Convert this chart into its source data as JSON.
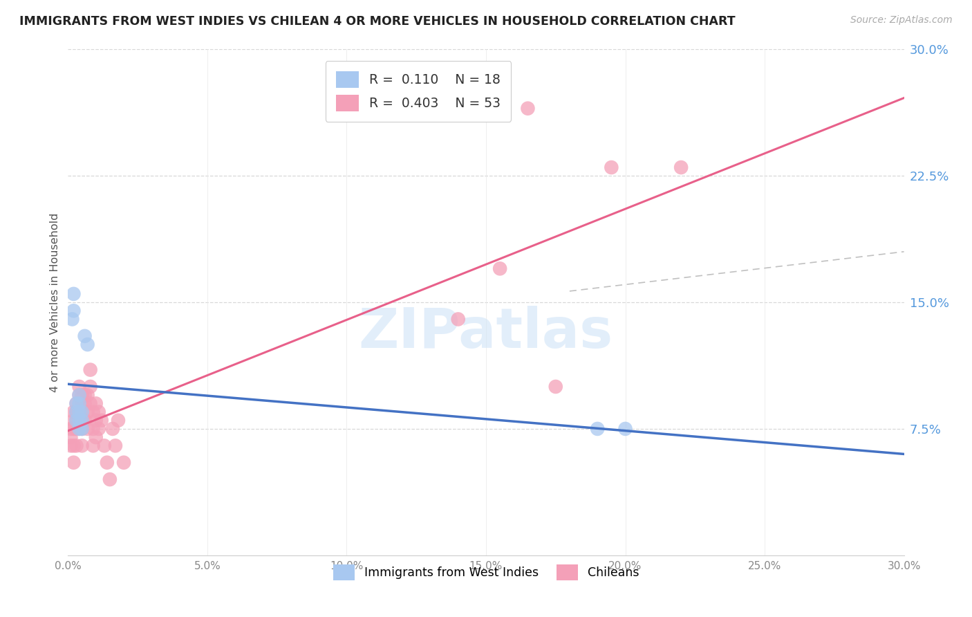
{
  "title": "IMMIGRANTS FROM WEST INDIES VS CHILEAN 4 OR MORE VEHICLES IN HOUSEHOLD CORRELATION CHART",
  "source": "Source: ZipAtlas.com",
  "ylabel": "4 or more Vehicles in Household",
  "xlim": [
    0.0,
    0.3
  ],
  "ylim": [
    0.0,
    0.3
  ],
  "xticks": [
    0.0,
    0.05,
    0.1,
    0.15,
    0.2,
    0.25,
    0.3
  ],
  "yticks_right": [
    0.075,
    0.15,
    0.225,
    0.3
  ],
  "ytick_right_labels": [
    "7.5%",
    "15.0%",
    "22.5%",
    "30.0%"
  ],
  "xtick_labels": [
    "0.0%",
    "5.0%",
    "10.0%",
    "15.0%",
    "20.0%",
    "25.0%",
    "30.0%"
  ],
  "r_west_indies": 0.11,
  "n_west_indies": 18,
  "r_chilean": 0.403,
  "n_chilean": 53,
  "legend_label_1": "Immigrants from West Indies",
  "legend_label_2": "Chileans",
  "color_west_indies": "#a8c8f0",
  "color_chilean": "#f4a0b8",
  "line_color_west_indies": "#4472c4",
  "line_color_chilean": "#e8608a",
  "watermark_text": "ZIPatlas",
  "west_indies_x": [
    0.0015,
    0.002,
    0.002,
    0.003,
    0.003,
    0.003,
    0.004,
    0.004,
    0.004,
    0.004,
    0.004,
    0.005,
    0.005,
    0.005,
    0.006,
    0.007,
    0.19,
    0.2
  ],
  "west_indies_y": [
    0.14,
    0.145,
    0.155,
    0.08,
    0.085,
    0.09,
    0.075,
    0.08,
    0.085,
    0.09,
    0.095,
    0.075,
    0.08,
    0.085,
    0.13,
    0.125,
    0.075,
    0.075
  ],
  "chilean_x": [
    0.001,
    0.001,
    0.001,
    0.002,
    0.002,
    0.002,
    0.002,
    0.002,
    0.003,
    0.003,
    0.003,
    0.003,
    0.003,
    0.004,
    0.004,
    0.004,
    0.004,
    0.005,
    0.005,
    0.005,
    0.005,
    0.005,
    0.006,
    0.006,
    0.006,
    0.007,
    0.007,
    0.007,
    0.008,
    0.008,
    0.008,
    0.009,
    0.009,
    0.009,
    0.01,
    0.01,
    0.01,
    0.011,
    0.011,
    0.012,
    0.013,
    0.014,
    0.015,
    0.016,
    0.017,
    0.018,
    0.02,
    0.14,
    0.155,
    0.165,
    0.175,
    0.195,
    0.22
  ],
  "chilean_y": [
    0.07,
    0.075,
    0.065,
    0.085,
    0.08,
    0.075,
    0.065,
    0.055,
    0.09,
    0.085,
    0.08,
    0.075,
    0.065,
    0.1,
    0.095,
    0.085,
    0.075,
    0.095,
    0.09,
    0.08,
    0.075,
    0.065,
    0.095,
    0.09,
    0.08,
    0.095,
    0.085,
    0.075,
    0.11,
    0.1,
    0.09,
    0.085,
    0.075,
    0.065,
    0.09,
    0.08,
    0.07,
    0.085,
    0.075,
    0.08,
    0.065,
    0.055,
    0.045,
    0.075,
    0.065,
    0.08,
    0.055,
    0.14,
    0.17,
    0.265,
    0.1,
    0.23,
    0.23
  ]
}
